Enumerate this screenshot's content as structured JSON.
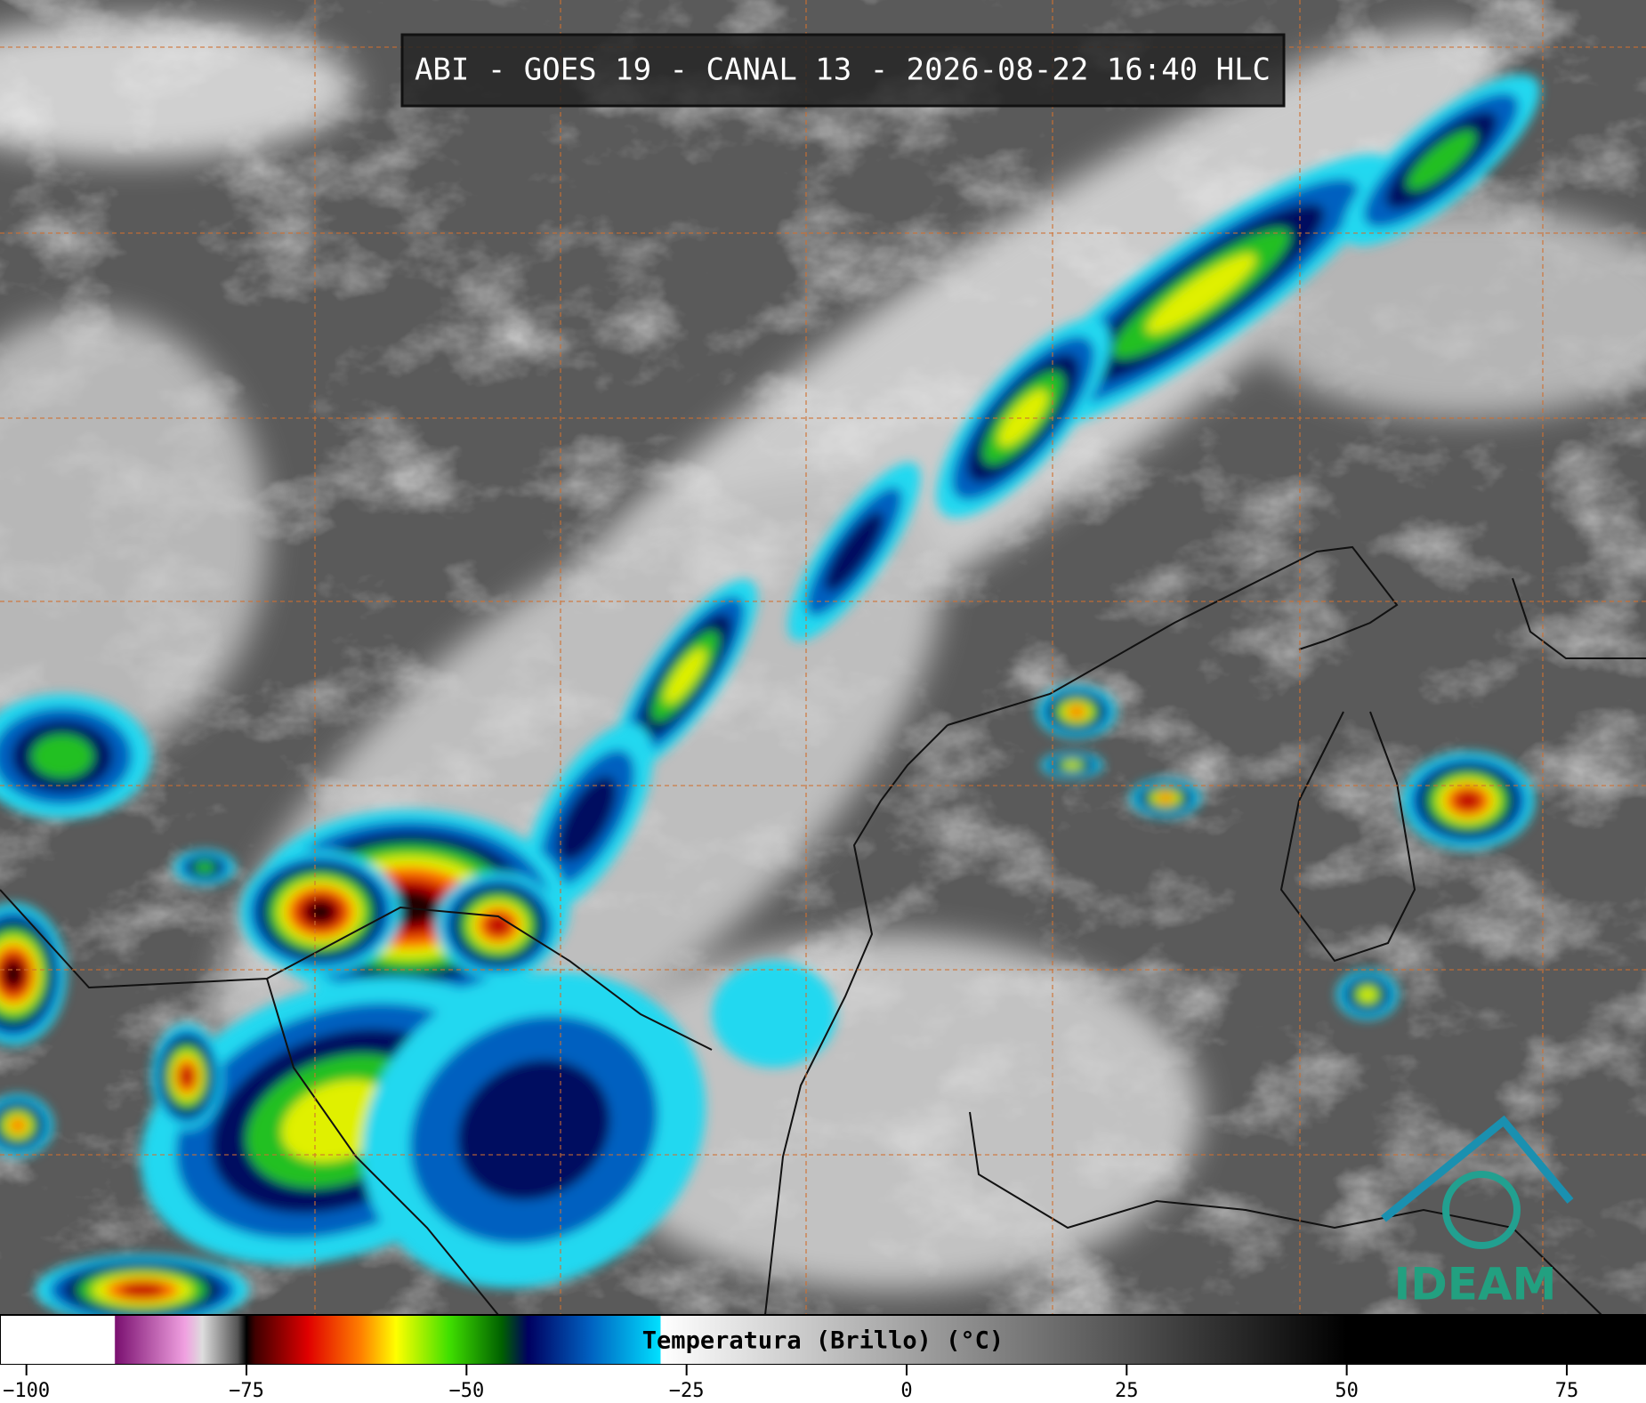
{
  "title": "ABI - GOES 19 - CANAL 13 - 2026-08-22 16:40 HLC",
  "logo": "IDEAM",
  "colorbar": {
    "label": "Temperatura (Brillo) (°C)",
    "lim": [
      -103,
      84
    ],
    "ticks": [
      {
        "value": -100,
        "label": "−100"
      },
      {
        "value": -75,
        "label": "−75"
      },
      {
        "value": -50,
        "label": "−50"
      },
      {
        "value": -25,
        "label": "−25"
      },
      0,
      25,
      50,
      75
    ],
    "stops": [
      {
        "value": -103,
        "color": "#ffffff"
      },
      {
        "value": -90,
        "color": "#ffffff"
      },
      {
        "value": -89.9,
        "color": "#7a1070"
      },
      {
        "value": -82,
        "color": "#f0a0e0"
      },
      {
        "value": -80,
        "color": "#dddddd"
      },
      {
        "value": -76,
        "color": "#555555"
      },
      {
        "value": -75,
        "color": "#000000"
      },
      {
        "value": -74,
        "color": "#400000"
      },
      {
        "value": -68,
        "color": "#e00000"
      },
      {
        "value": -62,
        "color": "#ff8000"
      },
      {
        "value": -58,
        "color": "#ffff00"
      },
      {
        "value": -52,
        "color": "#40e000"
      },
      {
        "value": -46,
        "color": "#006000"
      },
      {
        "value": -43,
        "color": "#000060"
      },
      {
        "value": -36,
        "color": "#0060c0"
      },
      {
        "value": -28,
        "color": "#00e0ff"
      },
      {
        "value": -27.9,
        "color": "#ffffff"
      },
      {
        "value": 50,
        "color": "#000000"
      },
      {
        "value": 84,
        "color": "#000000"
      }
    ]
  }
}
